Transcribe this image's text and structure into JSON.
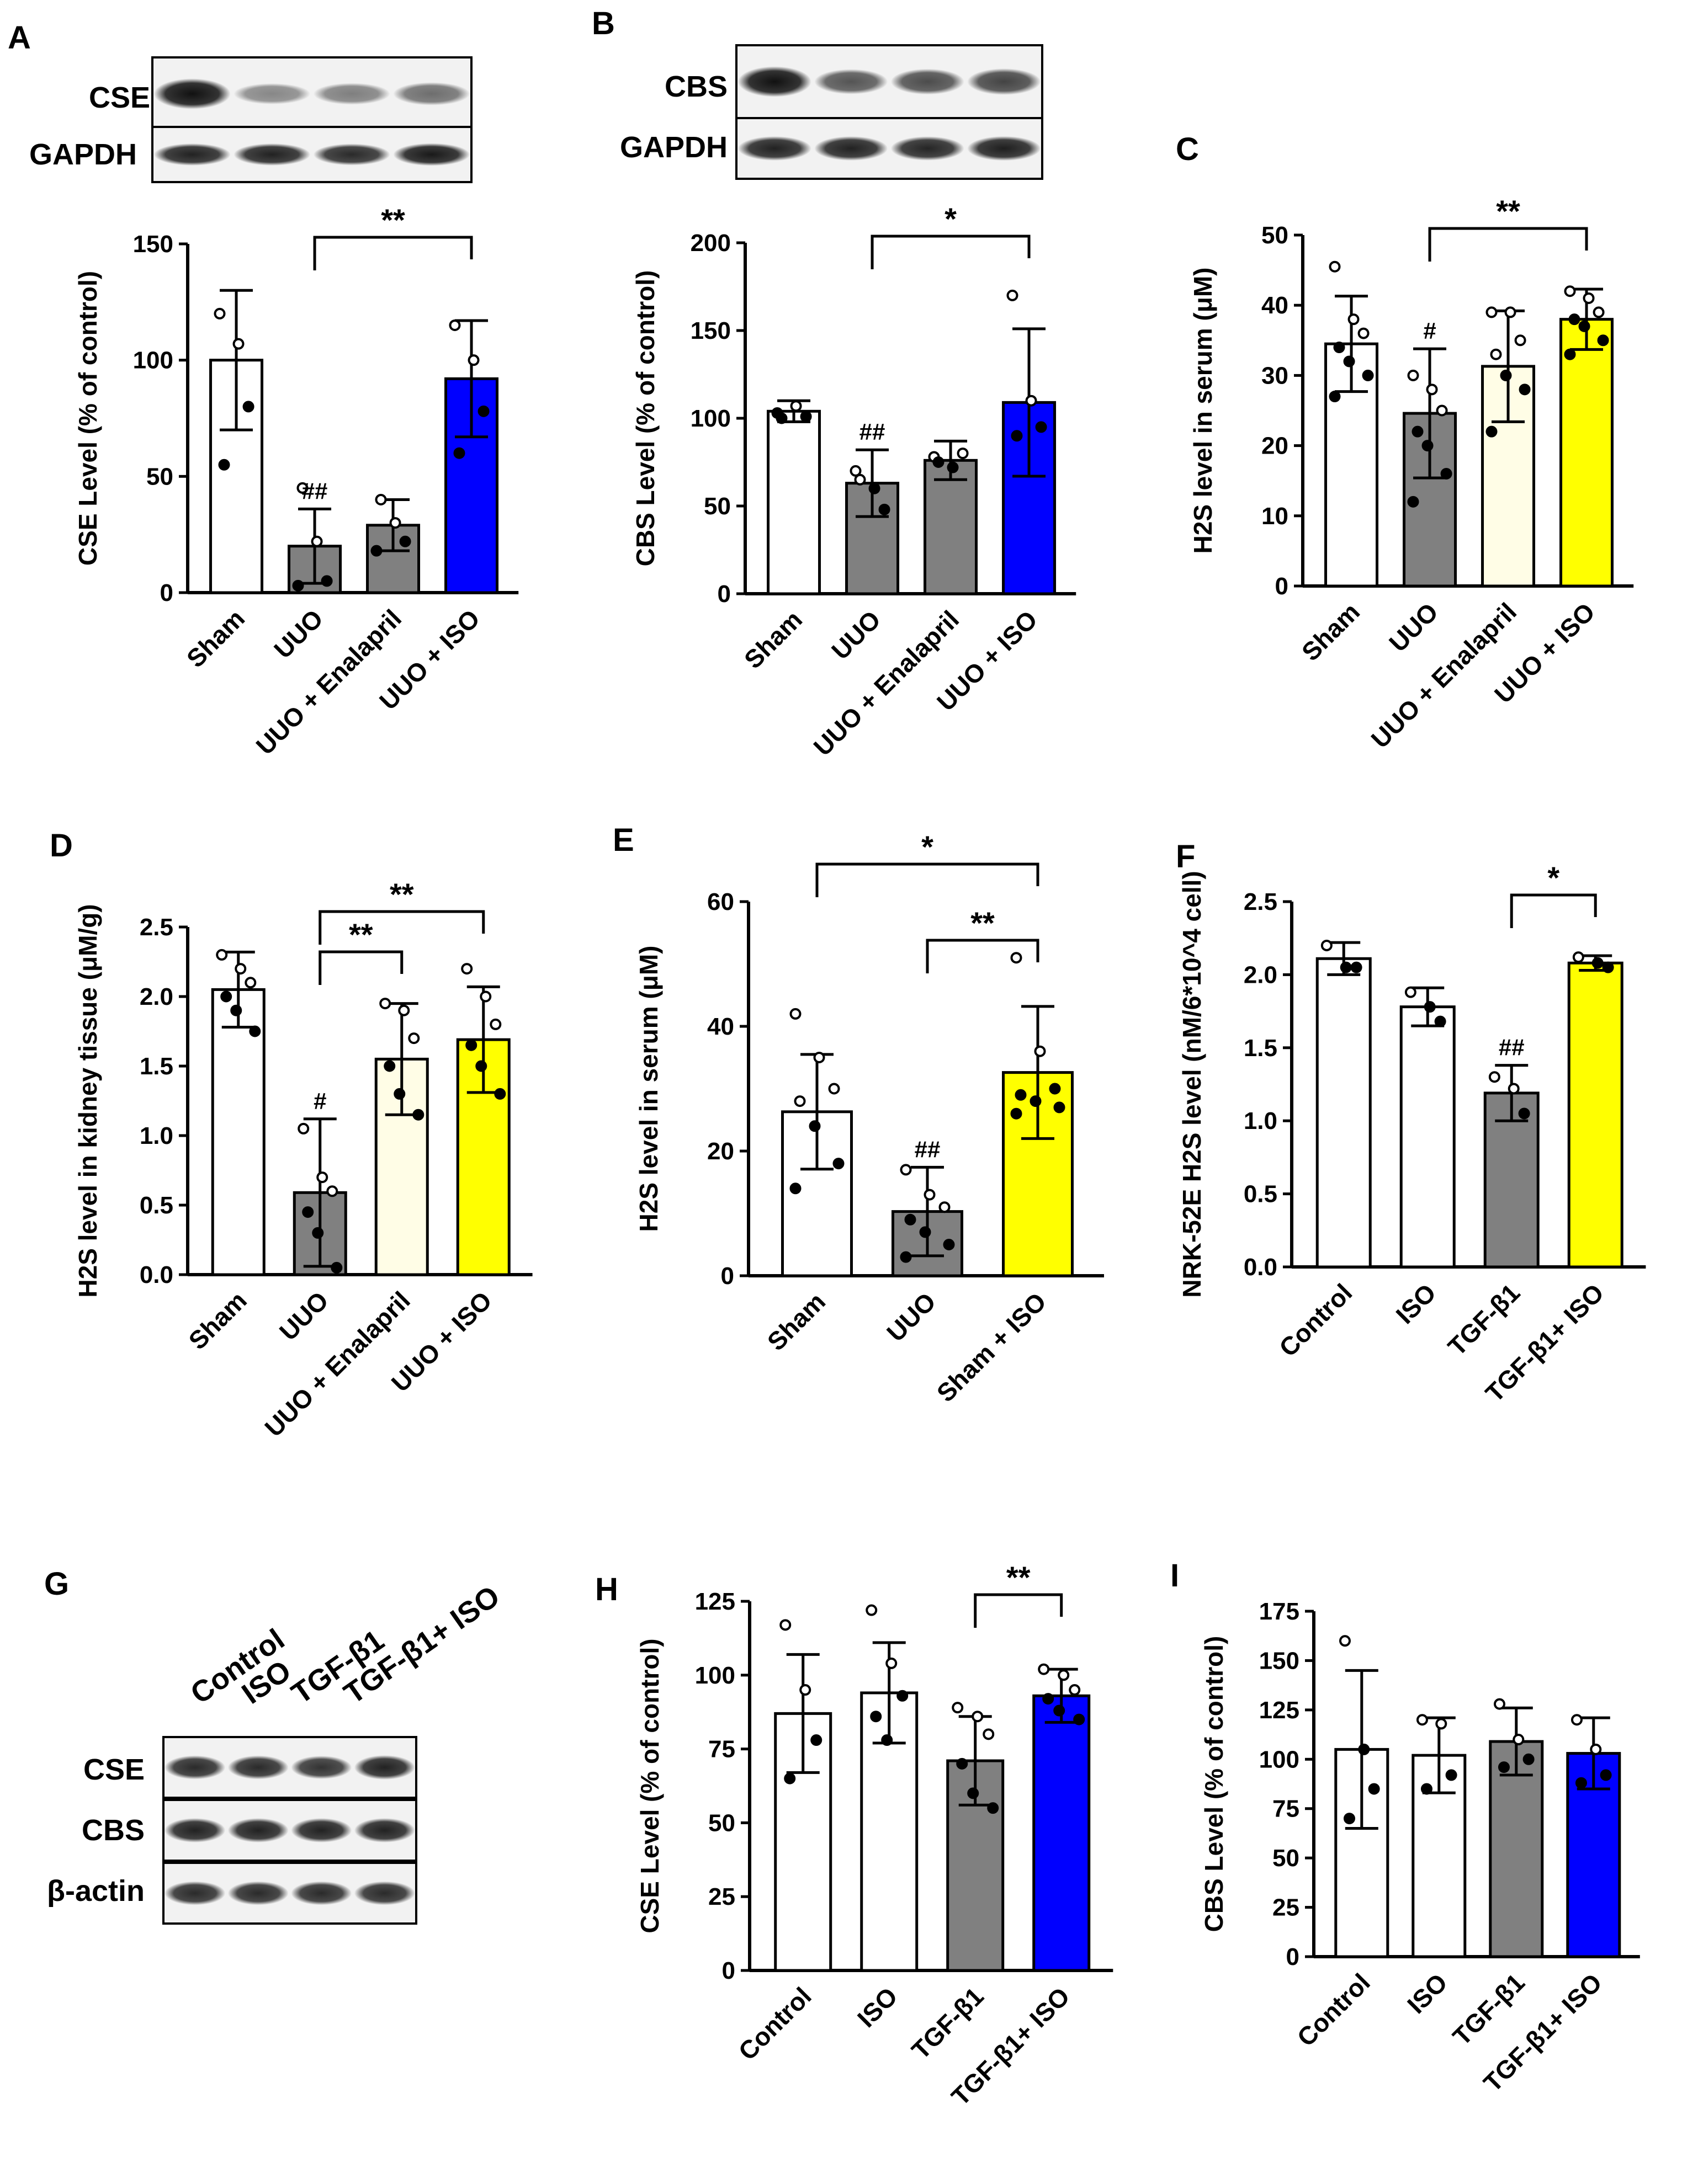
{
  "panel_labels": {
    "A": "A",
    "B": "B",
    "C": "C",
    "D": "D",
    "E": "E",
    "F": "F",
    "G": "G",
    "H": "H",
    "I": "I"
  },
  "blots": {
    "A": {
      "bands": [
        "CSE",
        "GAPDH"
      ]
    },
    "B": {
      "bands": [
        "CBS",
        "GAPDH"
      ]
    },
    "G": {
      "bands": [
        "CSE",
        "CBS",
        "β-actin"
      ],
      "lanes": [
        "Control",
        "ISO",
        "TGF-β1",
        "TGF-β1+ ISO"
      ]
    }
  },
  "colors": {
    "white": "#ffffff",
    "gray": "#808080",
    "blue": "#0000ff",
    "yellow": "#ffff00",
    "lightyellow": "#fffde6"
  },
  "chart_data": [
    {
      "id": "A",
      "type": "bar",
      "title": "",
      "categories": [
        "Sham",
        "UUO",
        "UUO + Enalapril",
        "UUO + ISO"
      ],
      "values": [
        100,
        20,
        29,
        92
      ],
      "errors": [
        30,
        16,
        11,
        25
      ],
      "colors": [
        "#ffffff",
        "#808080",
        "#808080",
        "#0000ff"
      ],
      "points": [
        [
          120,
          107,
          80,
          55
        ],
        [
          3,
          22,
          5,
          45
        ],
        [
          18,
          30,
          22,
          40
        ],
        [
          115,
          100,
          78,
          60
        ]
      ],
      "ylabel": "CSE  Level (% of control)",
      "xlabel": "",
      "ylim": [
        0,
        150
      ],
      "yticks": [
        0,
        50,
        100,
        150
      ],
      "marks": [
        {
          "cat": 1,
          "text": "##"
        }
      ],
      "brackets": [
        {
          "from": 1,
          "to": 3,
          "text": "**"
        }
      ]
    },
    {
      "id": "B",
      "type": "bar",
      "title": "",
      "categories": [
        "Sham",
        "UUO",
        "UUO + Enalapril",
        "UUO + ISO"
      ],
      "values": [
        104,
        63,
        76,
        109
      ],
      "errors": [
        6,
        19,
        11,
        42
      ],
      "colors": [
        "#ffffff",
        "#808080",
        "#808080",
        "#0000ff"
      ],
      "points": [
        [
          103,
          107,
          101,
          100
        ],
        [
          70,
          60,
          48,
          65
        ],
        [
          78,
          72,
          80,
          75
        ],
        [
          170,
          110,
          95,
          90
        ]
      ],
      "ylabel": "CBS  Level (% of control)",
      "xlabel": "",
      "ylim": [
        0,
        200
      ],
      "yticks": [
        0,
        50,
        100,
        150,
        200
      ],
      "marks": [
        {
          "cat": 1,
          "text": "##"
        }
      ],
      "brackets": [
        {
          "from": 1,
          "to": 3,
          "text": "*"
        }
      ]
    },
    {
      "id": "C",
      "type": "bar",
      "title": "",
      "categories": [
        "Sham",
        "UUO",
        "UUO + Enalapril",
        "UUO + ISO"
      ],
      "values": [
        34.5,
        24.6,
        31.3,
        38.0
      ],
      "errors": [
        6.8,
        9.2,
        7.9,
        4.3
      ],
      "colors": [
        "#ffffff",
        "#808080",
        "#fffde6",
        "#ffff00"
      ],
      "points": [
        [
          45.5,
          38,
          36,
          34,
          32,
          30,
          27
        ],
        [
          30,
          28,
          25,
          22,
          20,
          16,
          12
        ],
        [
          39,
          39,
          35,
          33,
          30,
          28,
          22
        ],
        [
          42,
          41,
          39,
          38,
          37,
          35,
          33
        ]
      ],
      "ylabel": "H2S level in serum (μM)",
      "xlabel": "",
      "ylim": [
        0,
        50
      ],
      "yticks": [
        0,
        10,
        20,
        30,
        40,
        50
      ],
      "marks": [
        {
          "cat": 1,
          "text": "#"
        }
      ],
      "brackets": [
        {
          "from": 1,
          "to": 3,
          "text": "**"
        }
      ]
    },
    {
      "id": "D",
      "type": "bar",
      "title": "",
      "categories": [
        "Sham",
        "UUO",
        "UUO + Enalapril",
        "UUO + ISO"
      ],
      "values": [
        2.05,
        0.59,
        1.55,
        1.69
      ],
      "errors": [
        0.27,
        0.53,
        0.4,
        0.38
      ],
      "colors": [
        "#ffffff",
        "#808080",
        "#fffde6",
        "#ffff00"
      ],
      "points": [
        [
          2.3,
          2.2,
          2.1,
          2.0,
          1.9,
          1.75
        ],
        [
          1.05,
          0.7,
          0.6,
          0.45,
          0.3,
          0.05
        ],
        [
          1.95,
          1.9,
          1.7,
          1.5,
          1.3,
          1.15
        ],
        [
          2.2,
          2.0,
          1.8,
          1.65,
          1.5,
          1.3
        ]
      ],
      "ylabel": "H2S level in kidney tissue (μM/g)",
      "xlabel": "",
      "ylim": [
        0,
        2.5
      ],
      "yticks": [
        0.0,
        0.5,
        1.0,
        1.5,
        2.0,
        2.5
      ],
      "yticklabels": [
        "0.0",
        "0.5",
        "1.0",
        "1.5",
        "2.0",
        "2.5"
      ],
      "marks": [
        {
          "cat": 1,
          "text": "#"
        }
      ],
      "brackets": [
        {
          "from": 1,
          "to": 2,
          "text": "**"
        },
        {
          "from": 1,
          "to": 3,
          "text": "**"
        }
      ]
    },
    {
      "id": "E",
      "type": "bar",
      "title": "",
      "categories": [
        "Sham",
        "UUO",
        "Sham + ISO"
      ],
      "values": [
        26.3,
        10.3,
        32.6
      ],
      "errors": [
        9.2,
        7.1,
        10.6
      ],
      "colors": [
        "#ffffff",
        "#808080",
        "#ffff00"
      ],
      "points": [
        [
          42,
          35,
          30,
          28,
          24,
          18,
          14
        ],
        [
          17,
          13,
          11,
          9,
          7,
          5,
          3
        ],
        [
          51,
          36,
          30,
          29,
          28,
          27,
          26
        ]
      ],
      "ylabel": "H2S level in serum (μM)",
      "xlabel": "",
      "ylim": [
        0,
        60
      ],
      "yticks": [
        0,
        20,
        40,
        60
      ],
      "marks": [
        {
          "cat": 1,
          "text": "##"
        }
      ],
      "brackets": [
        {
          "from": 0,
          "to": 2,
          "text": "*"
        },
        {
          "from": 1,
          "to": 2,
          "text": "**"
        }
      ]
    },
    {
      "id": "F",
      "type": "bar",
      "title": "",
      "categories": [
        "Control",
        "ISO",
        "TGF-β1",
        "TGF-β1+ ISO"
      ],
      "values": [
        2.11,
        1.78,
        1.19,
        2.08
      ],
      "errors": [
        0.11,
        0.13,
        0.19,
        0.05
      ],
      "colors": [
        "#ffffff",
        "#ffffff",
        "#808080",
        "#ffff00"
      ],
      "points": [
        [
          2.2,
          2.05,
          2.05
        ],
        [
          1.88,
          1.78,
          1.68
        ],
        [
          1.3,
          1.22,
          1.05
        ],
        [
          2.12,
          2.08,
          2.05
        ]
      ],
      "ylabel": "NRK-52E H2S level (nM/6*10^4 cell)",
      "xlabel": "",
      "ylim": [
        0,
        2.5
      ],
      "yticks": [
        0.0,
        0.5,
        1.0,
        1.5,
        2.0,
        2.5
      ],
      "yticklabels": [
        "0.0",
        "0.5",
        "1.0",
        "1.5",
        "2.0",
        "2.5"
      ],
      "marks": [
        {
          "cat": 2,
          "text": "##"
        }
      ],
      "brackets": [
        {
          "from": 2,
          "to": 3,
          "text": "*"
        }
      ]
    },
    {
      "id": "H",
      "type": "bar",
      "title": "",
      "categories": [
        "Control",
        "ISO",
        "TGF-β1",
        "TGF-β1+ ISO"
      ],
      "values": [
        87,
        94,
        71,
        93
      ],
      "errors": [
        20,
        17,
        15,
        9
      ],
      "colors": [
        "#ffffff",
        "#ffffff",
        "#808080",
        "#0000ff"
      ],
      "points": [
        [
          117,
          95,
          78,
          65
        ],
        [
          122,
          104,
          93,
          86,
          78
        ],
        [
          89,
          86,
          80,
          70,
          60,
          55
        ],
        [
          102,
          100,
          95,
          92,
          88,
          85
        ]
      ],
      "ylabel": "CSE  Level (% of control)",
      "xlabel": "",
      "ylim": [
        0,
        125
      ],
      "yticks": [
        0,
        25,
        50,
        75,
        100,
        125
      ],
      "marks": [],
      "brackets": [
        {
          "from": 2,
          "to": 3,
          "text": "**"
        }
      ]
    },
    {
      "id": "I",
      "type": "bar",
      "title": "",
      "categories": [
        "Control",
        "ISO",
        "TGF-β1",
        "TGF-β1+ ISO"
      ],
      "values": [
        105,
        102,
        109,
        103
      ],
      "errors": [
        40,
        19,
        17,
        18
      ],
      "colors": [
        "#ffffff",
        "#ffffff",
        "#808080",
        "#0000ff"
      ],
      "points": [
        [
          160,
          105,
          85,
          70
        ],
        [
          120,
          118,
          92,
          85
        ],
        [
          128,
          110,
          100,
          96
        ],
        [
          120,
          105,
          92,
          88
        ]
      ],
      "ylabel": "CBS  Level (% of control)",
      "xlabel": "",
      "ylim": [
        0,
        175
      ],
      "yticks": [
        0,
        25,
        50,
        75,
        100,
        125,
        150,
        175
      ],
      "marks": [],
      "brackets": []
    }
  ]
}
